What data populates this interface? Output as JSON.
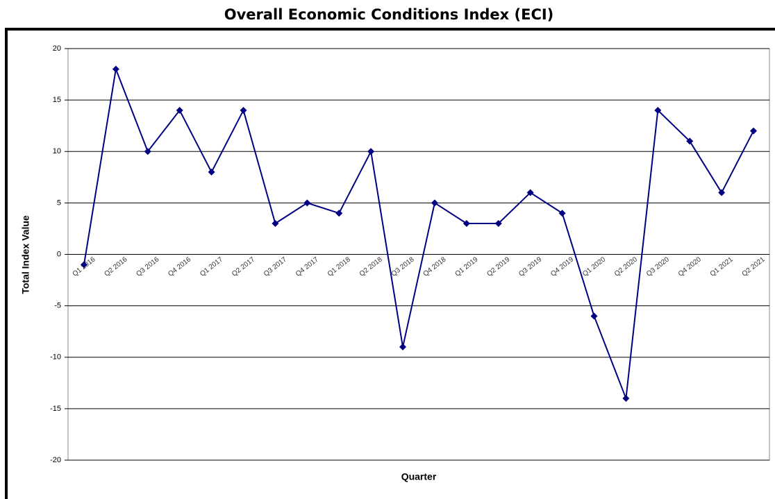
{
  "chart_data": {
    "type": "line",
    "title": "Overall Economic Conditions Index (ECI)",
    "x_label": "Quarter",
    "y_label": "Total Index Value",
    "categories": [
      "Q1 2016",
      "Q2 2016",
      "Q3 2016",
      "Q4 2016",
      "Q1 2017",
      "Q2 2017",
      "Q3 2017",
      "Q4 2017",
      "Q1 2018",
      "Q2 2018",
      "Q3 2018",
      "Q4 2018",
      "Q1 2019",
      "Q2 2019",
      "Q3 2019",
      "Q4 2019",
      "Q1 2020",
      "Q2 2020",
      "Q3 2020",
      "Q4 2020",
      "Q1 2021",
      "Q2 2021"
    ],
    "series": [
      {
        "name": "ECI",
        "color": "#000080",
        "values": [
          -1,
          18,
          10,
          14,
          8,
          14,
          3,
          5,
          4,
          10,
          -9,
          5,
          3,
          3,
          6,
          4,
          -6,
          -14,
          14,
          11,
          6,
          12
        ]
      }
    ],
    "ylim": [
      -20,
      20
    ],
    "yticks": [
      -20,
      -15,
      -10,
      -5,
      0,
      5,
      10,
      15,
      20
    ],
    "grid": true
  }
}
